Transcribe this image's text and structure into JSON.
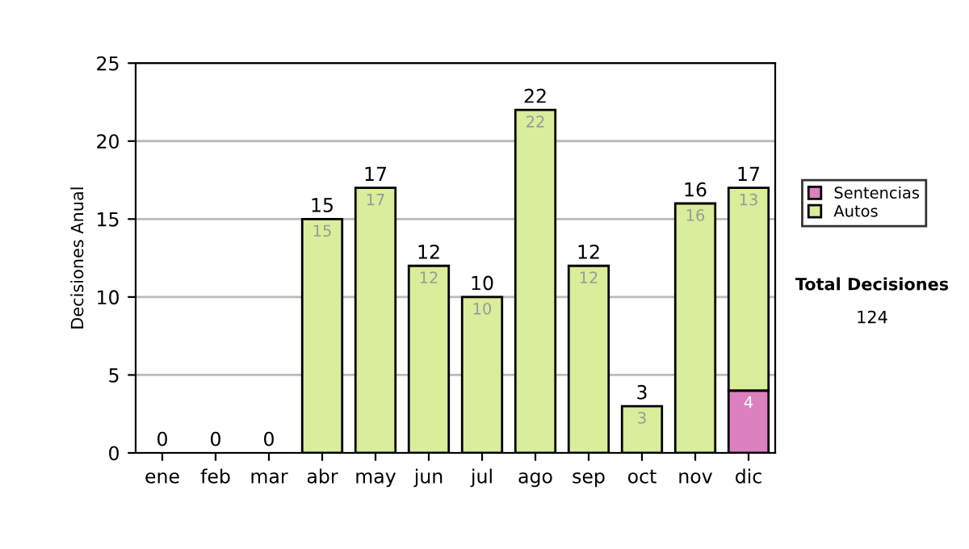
{
  "chart_data": {
    "type": "bar",
    "ylabel": "Decisiones Anual",
    "categories": [
      "ene",
      "feb",
      "mar",
      "abr",
      "may",
      "jun",
      "jul",
      "ago",
      "sep",
      "oct",
      "nov",
      "dic"
    ],
    "series": [
      {
        "name": "Sentencias",
        "color": "#dd80c0",
        "values": [
          0,
          0,
          0,
          0,
          0,
          0,
          0,
          0,
          0,
          0,
          0,
          4
        ],
        "value_labels": [
          null,
          null,
          null,
          null,
          null,
          null,
          null,
          null,
          null,
          null,
          null,
          "4"
        ]
      },
      {
        "name": "Autos",
        "color": "#d9ed9a",
        "values": [
          0,
          0,
          0,
          15,
          17,
          12,
          10,
          22,
          12,
          3,
          16,
          13
        ],
        "value_labels": [
          null,
          null,
          null,
          "15",
          "17",
          "12",
          "10",
          "22",
          "12",
          "3",
          "16",
          "13"
        ]
      }
    ],
    "stacked": true,
    "totals": [
      "0",
      "0",
      "0",
      "15",
      "17",
      "12",
      "10",
      "22",
      "12",
      "3",
      "16",
      "17"
    ],
    "ylim": [
      0,
      25
    ],
    "yticks": [
      0,
      5,
      10,
      15,
      20,
      25
    ],
    "grid": "y",
    "legend": "right",
    "annotations": [
      "Total Decisiones",
      "124"
    ]
  }
}
